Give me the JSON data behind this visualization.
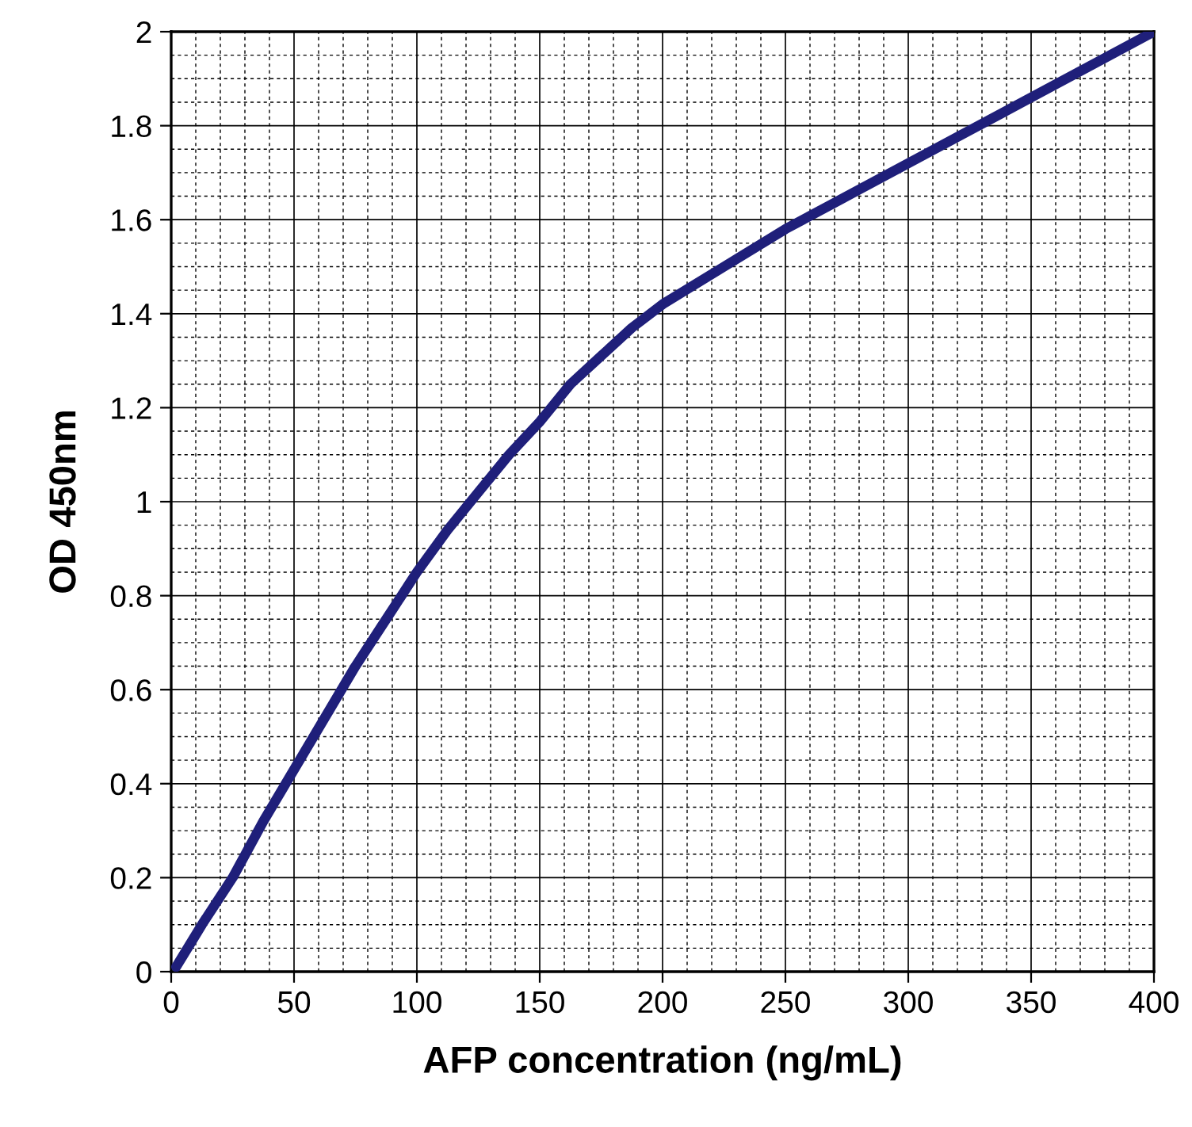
{
  "chart_data": {
    "type": "line",
    "xlabel": "AFP concentration (ng/mL)",
    "ylabel": "OD 450nm",
    "x": [
      2,
      12.5,
      25,
      37.5,
      50,
      62.5,
      75,
      87.5,
      100,
      112.5,
      125,
      137.5,
      150,
      162.5,
      175,
      187.5,
      200,
      225,
      250,
      275,
      300,
      325,
      350,
      375,
      400
    ],
    "series": [
      {
        "color": "#1f1f7a",
        "values": [
          0.01,
          0.1,
          0.2,
          0.32,
          0.43,
          0.54,
          0.65,
          0.75,
          0.85,
          0.94,
          1.02,
          1.1,
          1.17,
          1.25,
          1.31,
          1.37,
          1.42,
          1.5,
          1.58,
          1.65,
          1.72,
          1.79,
          1.86,
          1.93,
          2.0
        ]
      }
    ],
    "xlim": [
      0,
      400
    ],
    "ylim": [
      0,
      2
    ],
    "xticks": [
      0,
      50,
      100,
      150,
      200,
      250,
      300,
      350,
      400
    ],
    "yticks": [
      0,
      0.2,
      0.4,
      0.6,
      0.8,
      1,
      1.2,
      1.4,
      1.6,
      1.8,
      2
    ],
    "grid": true,
    "marker": "none",
    "line_style": "solid"
  }
}
